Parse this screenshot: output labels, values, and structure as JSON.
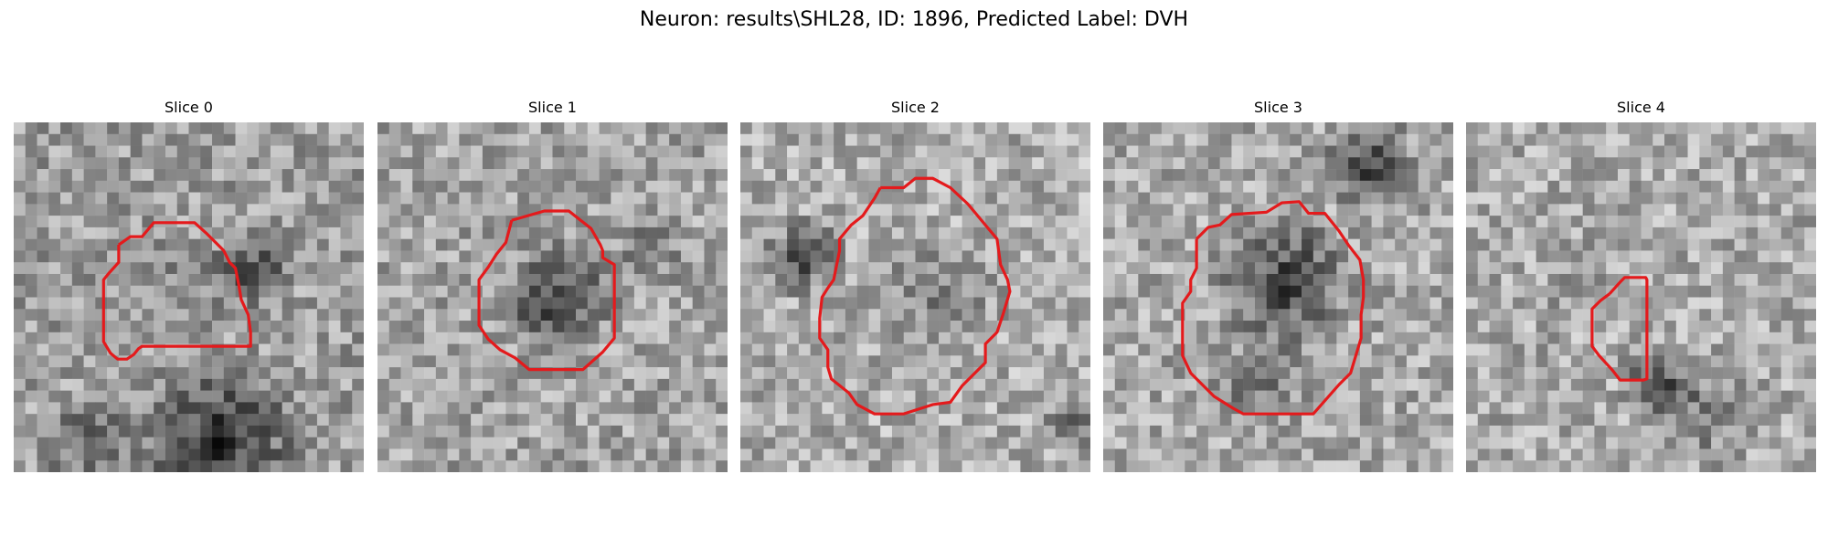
{
  "figure": {
    "title": "Neuron: results\\SHL28, ID: 1896, Predicted Label: DVH"
  },
  "panels": [
    {
      "title": "Slice 0",
      "contour_color": "#e41a1c"
    },
    {
      "title": "Slice 1",
      "contour_color": "#e41a1c"
    },
    {
      "title": "Slice 2",
      "contour_color": "#e41a1c"
    },
    {
      "title": "Slice 3",
      "contour_color": "#e41a1c"
    },
    {
      "title": "Slice 4",
      "contour_color": "#e41a1c"
    }
  ],
  "image_colormap": "grayscale"
}
